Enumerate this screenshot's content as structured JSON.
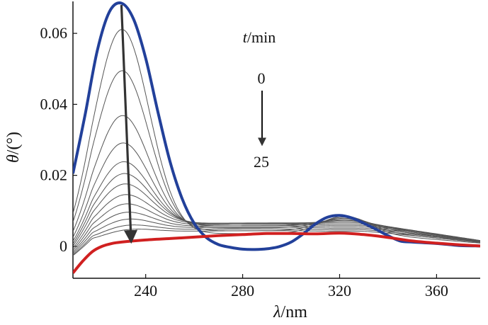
{
  "chart_data": {
    "type": "line",
    "title": "",
    "xlabel_italic": "λ",
    "xlabel_unit": "/nm",
    "ylabel_italic": "θ",
    "ylabel_unit": "/(°)",
    "xlim": [
      210,
      378
    ],
    "ylim": [
      -0.009,
      0.069
    ],
    "xticks": [
      240,
      280,
      320,
      360
    ],
    "xtick_labels": [
      "240",
      "280",
      "320",
      "360"
    ],
    "yticks": [
      0,
      0.02,
      0.04,
      0.06
    ],
    "ytick_labels": [
      "0",
      "0.02",
      "0.04",
      "0.06"
    ],
    "grid": false,
    "legend": "none",
    "series_colors": {
      "initial": "#22409a",
      "final": "#d02020",
      "intermediate": "#555555",
      "arrow": "#333333"
    },
    "annotations": {
      "time_label_italic": "t",
      "time_label_unit": "/min",
      "time_start": "0",
      "time_end": "25"
    },
    "series": [
      {
        "name": "t=0",
        "role": "initial",
        "x": [
          210,
          215,
          220,
          225,
          230,
          235,
          240,
          245,
          250,
          255,
          260,
          265,
          270,
          275,
          280,
          285,
          290,
          295,
          300,
          305,
          310,
          315,
          320,
          325,
          330,
          335,
          340,
          345,
          350,
          355,
          360,
          365,
          370,
          378
        ],
        "y": [
          0.0205,
          0.037,
          0.055,
          0.066,
          0.0685,
          0.064,
          0.053,
          0.038,
          0.024,
          0.0135,
          0.0065,
          0.0025,
          0.0005,
          -0.0003,
          -0.0008,
          -0.0009,
          -0.0007,
          -0.0001,
          0.0012,
          0.0035,
          0.0063,
          0.0082,
          0.0087,
          0.008,
          0.0065,
          0.0048,
          0.003,
          0.0015,
          0.0012,
          0.001,
          0.0008,
          0.0005,
          0.0002,
          0.0001
        ]
      },
      {
        "name": "t=25",
        "role": "final",
        "x": [
          210,
          214,
          218,
          222,
          226,
          230,
          240,
          250,
          260,
          270,
          280,
          290,
          300,
          310,
          320,
          330,
          340,
          350,
          360,
          370,
          378
        ],
        "y": [
          -0.0075,
          -0.0042,
          -0.0015,
          0.0,
          0.0008,
          0.0012,
          0.0018,
          0.0022,
          0.0026,
          0.003,
          0.0033,
          0.0036,
          0.0036,
          0.0035,
          0.0037,
          0.0033,
          0.0025,
          0.0015,
          0.0009,
          0.0004,
          0.0001
        ]
      },
      {
        "name": "intermediate-1",
        "role": "intermediate",
        "peak": 0.0595,
        "plateau": 0.0036,
        "hump": 0.0085
      },
      {
        "name": "intermediate-2",
        "role": "intermediate",
        "peak": 0.0475,
        "plateau": 0.0044,
        "hump": 0.0082
      },
      {
        "name": "intermediate-3",
        "role": "intermediate",
        "peak": 0.0345,
        "plateau": 0.0052,
        "hump": 0.0079
      },
      {
        "name": "intermediate-4",
        "role": "intermediate",
        "peak": 0.0265,
        "plateau": 0.0058,
        "hump": 0.0076
      },
      {
        "name": "intermediate-5",
        "role": "intermediate",
        "peak": 0.021,
        "plateau": 0.0062,
        "hump": 0.0073
      },
      {
        "name": "intermediate-6",
        "role": "intermediate",
        "peak": 0.0175,
        "plateau": 0.0065,
        "hump": 0.007
      },
      {
        "name": "intermediate-7",
        "role": "intermediate",
        "peak": 0.0145,
        "plateau": 0.0066,
        "hump": 0.0066
      },
      {
        "name": "intermediate-8",
        "role": "intermediate",
        "peak": 0.0115,
        "plateau": 0.0065,
        "hump": 0.0062
      },
      {
        "name": "intermediate-9",
        "role": "intermediate",
        "peak": 0.009,
        "plateau": 0.0062,
        "hump": 0.0058
      },
      {
        "name": "intermediate-10",
        "role": "intermediate",
        "peak": 0.0068,
        "plateau": 0.0058,
        "hump": 0.0054
      },
      {
        "name": "intermediate-11",
        "role": "intermediate",
        "peak": 0.005,
        "plateau": 0.0054,
        "hump": 0.005
      },
      {
        "name": "intermediate-12",
        "role": "intermediate",
        "peak": 0.0035,
        "plateau": 0.0049,
        "hump": 0.0046
      },
      {
        "name": "intermediate-13",
        "role": "intermediate",
        "peak": 0.0025,
        "plateau": 0.0044,
        "hump": 0.0042
      }
    ],
    "main_arrow": {
      "from": [
        230,
        0.068
      ],
      "to": [
        234,
        0.0015
      ]
    }
  }
}
